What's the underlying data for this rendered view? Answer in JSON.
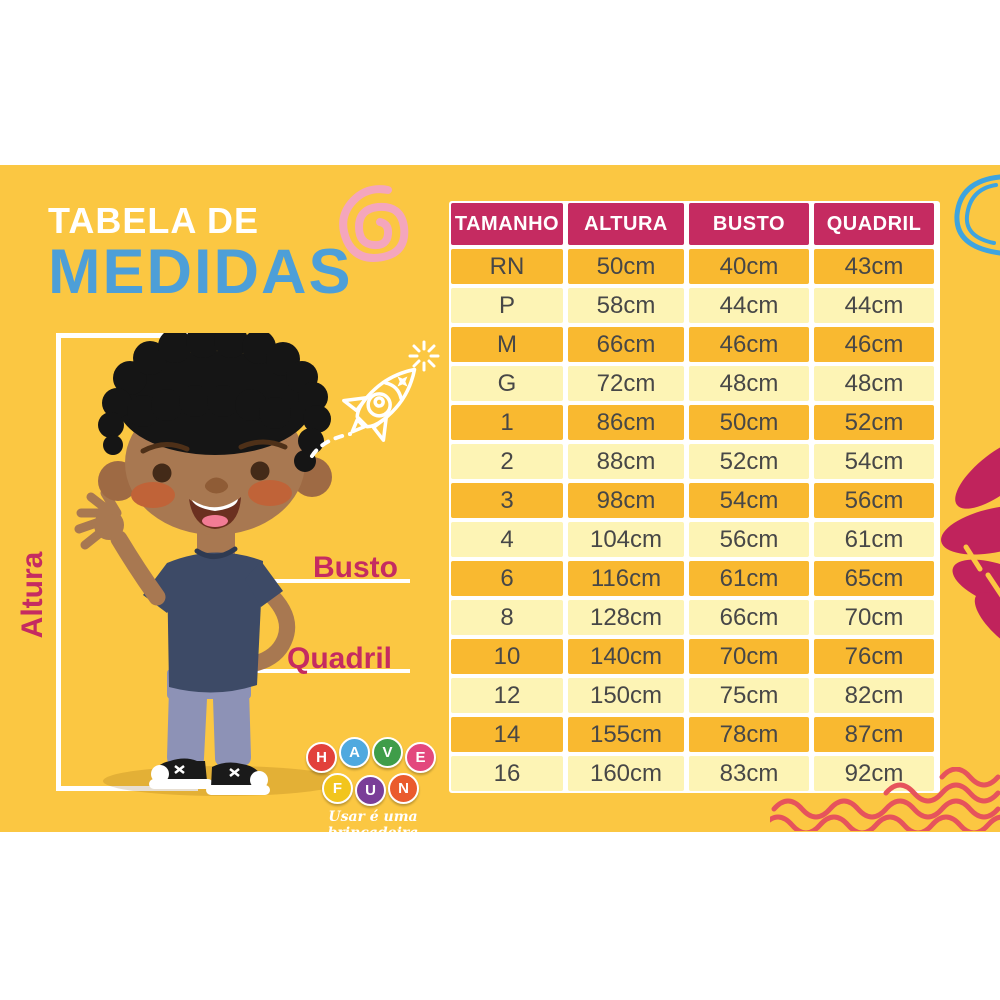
{
  "title": {
    "line1": "TABELA DE",
    "line2": "MEDIDAS"
  },
  "figure_labels": {
    "height": "Altura",
    "bust": "Busto",
    "hip": "Quadril"
  },
  "table": {
    "headers": [
      "TAMANHO",
      "ALTURA",
      "BUSTO",
      "QUADRIL"
    ],
    "rows": [
      {
        "size": "RN",
        "height": "50cm",
        "bust": "40cm",
        "hip": "43cm"
      },
      {
        "size": "P",
        "height": "58cm",
        "bust": "44cm",
        "hip": "44cm"
      },
      {
        "size": "M",
        "height": "66cm",
        "bust": "46cm",
        "hip": "46cm"
      },
      {
        "size": "G",
        "height": "72cm",
        "bust": "48cm",
        "hip": "48cm"
      },
      {
        "size": "1",
        "height": "86cm",
        "bust": "50cm",
        "hip": "52cm"
      },
      {
        "size": "2",
        "height": "88cm",
        "bust": "52cm",
        "hip": "54cm"
      },
      {
        "size": "3",
        "height": "98cm",
        "bust": "54cm",
        "hip": "56cm"
      },
      {
        "size": "4",
        "height": "104cm",
        "bust": "56cm",
        "hip": "61cm"
      },
      {
        "size": "6",
        "height": "116cm",
        "bust": "61cm",
        "hip": "65cm"
      },
      {
        "size": "8",
        "height": "128cm",
        "bust": "66cm",
        "hip": "70cm"
      },
      {
        "size": "10",
        "height": "140cm",
        "bust": "70cm",
        "hip": "76cm"
      },
      {
        "size": "12",
        "height": "150cm",
        "bust": "75cm",
        "hip": "82cm"
      },
      {
        "size": "14",
        "height": "155cm",
        "bust": "78cm",
        "hip": "87cm"
      },
      {
        "size": "16",
        "height": "160cm",
        "bust": "83cm",
        "hip": "92cm"
      }
    ]
  },
  "logo": {
    "letters": [
      {
        "char": "H",
        "color": "#E2413B"
      },
      {
        "char": "A",
        "color": "#4FA9DF"
      },
      {
        "char": "V",
        "color": "#3F9D49"
      },
      {
        "char": "E",
        "color": "#E3487D"
      },
      {
        "char": "F",
        "color": "#F2C51D"
      },
      {
        "char": "U",
        "color": "#7A3E98"
      },
      {
        "char": "N",
        "color": "#EA5B2D"
      }
    ],
    "tagline": "Usar é uma brincadeira"
  },
  "colors": {
    "card_background": "#FBC742",
    "header_magenta": "#C52B61",
    "title_blue": "#4D9FD8",
    "row_dark": "#F9B930",
    "row_light": "#FDF4B5",
    "cell_text": "#474747",
    "wave_red": "#E6535C",
    "spiral_pink": "#F4A6BD",
    "doodle_blue": "#3EA4DF",
    "brush_magenta": "#C0235C"
  },
  "chart_data": {
    "type": "table",
    "title": "TABELA DE MEDIDAS",
    "columns": [
      "TAMANHO",
      "ALTURA",
      "BUSTO",
      "QUADRIL"
    ],
    "rows": [
      [
        "RN",
        "50cm",
        "40cm",
        "43cm"
      ],
      [
        "P",
        "58cm",
        "44cm",
        "44cm"
      ],
      [
        "M",
        "66cm",
        "46cm",
        "46cm"
      ],
      [
        "G",
        "72cm",
        "48cm",
        "48cm"
      ],
      [
        "1",
        "86cm",
        "50cm",
        "52cm"
      ],
      [
        "2",
        "88cm",
        "52cm",
        "54cm"
      ],
      [
        "3",
        "98cm",
        "54cm",
        "56cm"
      ],
      [
        "4",
        "104cm",
        "56cm",
        "61cm"
      ],
      [
        "6",
        "116cm",
        "61cm",
        "65cm"
      ],
      [
        "8",
        "128cm",
        "66cm",
        "70cm"
      ],
      [
        "10",
        "140cm",
        "70cm",
        "76cm"
      ],
      [
        "12",
        "150cm",
        "75cm",
        "82cm"
      ],
      [
        "14",
        "155cm",
        "78cm",
        "87cm"
      ],
      [
        "16",
        "160cm",
        "83cm",
        "92cm"
      ]
    ]
  }
}
